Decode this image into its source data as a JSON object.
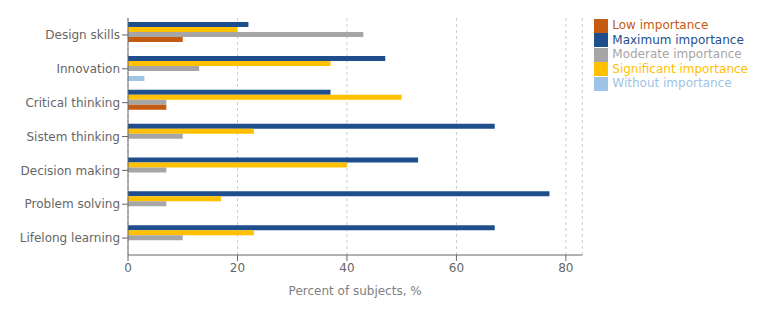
{
  "chart_data": {
    "type": "bar",
    "orientation": "horizontal",
    "categories": [
      "Lifelong learning",
      "Problem solving",
      "Decision making",
      "Sistem thinking",
      "Critical thinking",
      "Innovation",
      "Design skills"
    ],
    "series": [
      {
        "name": "Maximum importance",
        "color": "#1f4e8c",
        "values": [
          67,
          77,
          53,
          67,
          37,
          47,
          22
        ]
      },
      {
        "name": "Significant importance",
        "color": "#ffc000",
        "values": [
          23,
          17,
          40,
          23,
          50,
          37,
          20
        ]
      },
      {
        "name": "Moderate importance",
        "color": "#a6a6a6",
        "values": [
          10,
          7,
          7,
          10,
          7,
          13,
          43
        ]
      },
      {
        "name": "Low importance",
        "color": "#c55a11",
        "values": [
          0,
          0,
          0,
          0,
          7,
          0,
          10
        ]
      },
      {
        "name": "Without importance",
        "color": "#9dc3e6",
        "values": [
          0,
          0,
          0,
          0,
          0,
          3,
          0
        ]
      }
    ],
    "xlabel": "Percent of subjects, %",
    "xlim": [
      0,
      83
    ],
    "xticks": [
      0,
      20,
      40,
      60,
      80
    ],
    "grid": true,
    "legend": "right"
  }
}
